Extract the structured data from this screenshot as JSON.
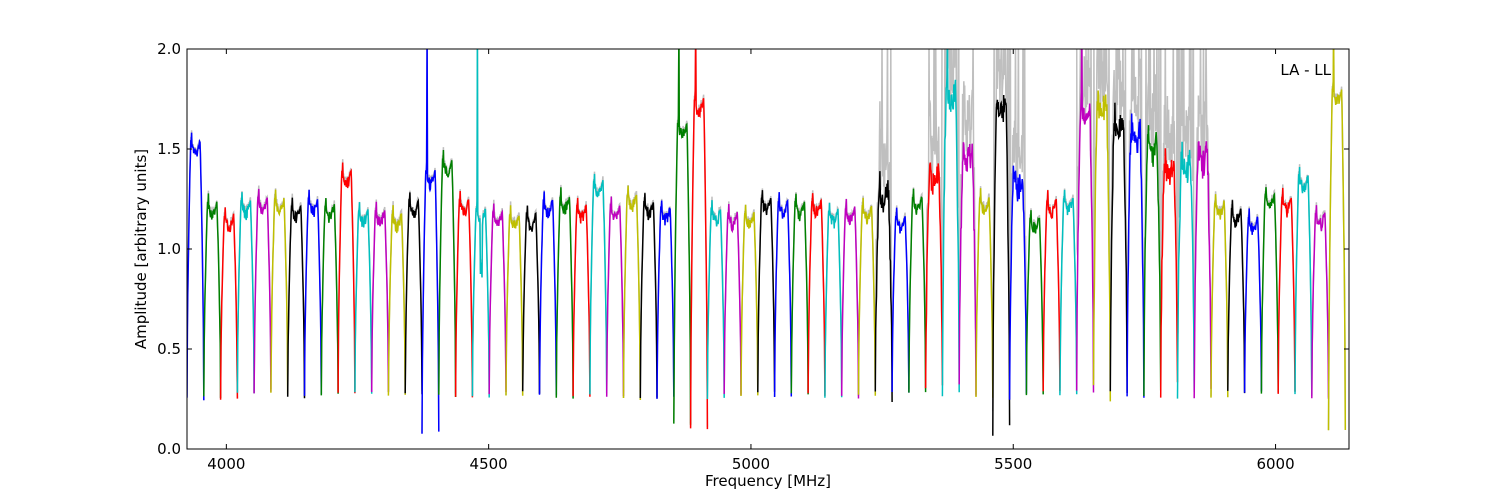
{
  "chart_data": {
    "type": "line",
    "title": "",
    "xlabel": "Frequency [MHz]",
    "ylabel": "Amplitude [arbitrary units]",
    "annotation": "LA - LL",
    "xlim": [
      3925,
      6140
    ],
    "ylim": [
      0.0,
      2.0
    ],
    "xticks": [
      4000,
      4500,
      5000,
      5500,
      6000
    ],
    "yticks": [
      0.0,
      0.5,
      1.0,
      1.5,
      2.0
    ],
    "ytick_labels": [
      "0.0",
      "0.5",
      "1.0",
      "1.5",
      "2.0"
    ],
    "grid": false,
    "legend": "none",
    "colors": {
      "raw_trace": "#bfbfbf",
      "cycle": [
        "#0000ff",
        "#008000",
        "#ff0000",
        "#00bfbf",
        "#bf00bf",
        "#bfbf00",
        "#000000"
      ]
    },
    "channels": {
      "start": 3925,
      "width": 32,
      "count": 69,
      "typical_peak": 1.22,
      "edge_floor": 0.27
    },
    "features": [
      {
        "channel": 0,
        "peak": 1.54
      },
      {
        "channel": 9,
        "peak": 1.39
      },
      {
        "channel": 14,
        "peak": 1.39,
        "fill_to": 0.08,
        "spike": 2.0
      },
      {
        "channel": 15,
        "peak": 1.45
      },
      {
        "channel": 17,
        "peak": 1.2,
        "spike": 2.0,
        "mid_dip": 0.9
      },
      {
        "channel": 24,
        "peak": 1.34
      },
      {
        "channel": 29,
        "peak": 1.63,
        "fill_to": 0.12,
        "spike": 2.0
      },
      {
        "channel": 30,
        "peak": 1.75,
        "fill_to": 0.1,
        "spike": 2.0
      },
      {
        "channel": 41,
        "peak": 1.3,
        "noisy": true
      },
      {
        "channel": 44,
        "peak": 1.4,
        "noisy": true
      },
      {
        "channel": 45,
        "peak": 1.8,
        "spike": 2.0,
        "noisy": true
      },
      {
        "channel": 46,
        "peak": 1.5,
        "noisy": true
      },
      {
        "channel": 48,
        "peak": 1.75,
        "fill_to": 0.1,
        "noisy": true
      },
      {
        "channel": 49,
        "peak": 1.38,
        "noisy": true
      },
      {
        "channel": 53,
        "peak": 1.7,
        "spike": 2.0,
        "noisy": true
      },
      {
        "channel": 54,
        "peak": 1.75,
        "noisy": true
      },
      {
        "channel": 55,
        "peak": 1.65,
        "noisy": true
      },
      {
        "channel": 56,
        "peak": 1.6,
        "noisy": true
      },
      {
        "channel": 57,
        "peak": 1.55,
        "noisy": true
      },
      {
        "channel": 58,
        "peak": 1.45,
        "noisy": true
      },
      {
        "channel": 59,
        "peak": 1.45,
        "noisy": true
      },
      {
        "channel": 60,
        "peak": 1.5,
        "noisy": true
      },
      {
        "channel": 66,
        "peak": 1.37
      },
      {
        "channel": 68,
        "peak": 1.8,
        "fill_to": 0.09,
        "spike": 2.0
      }
    ]
  }
}
